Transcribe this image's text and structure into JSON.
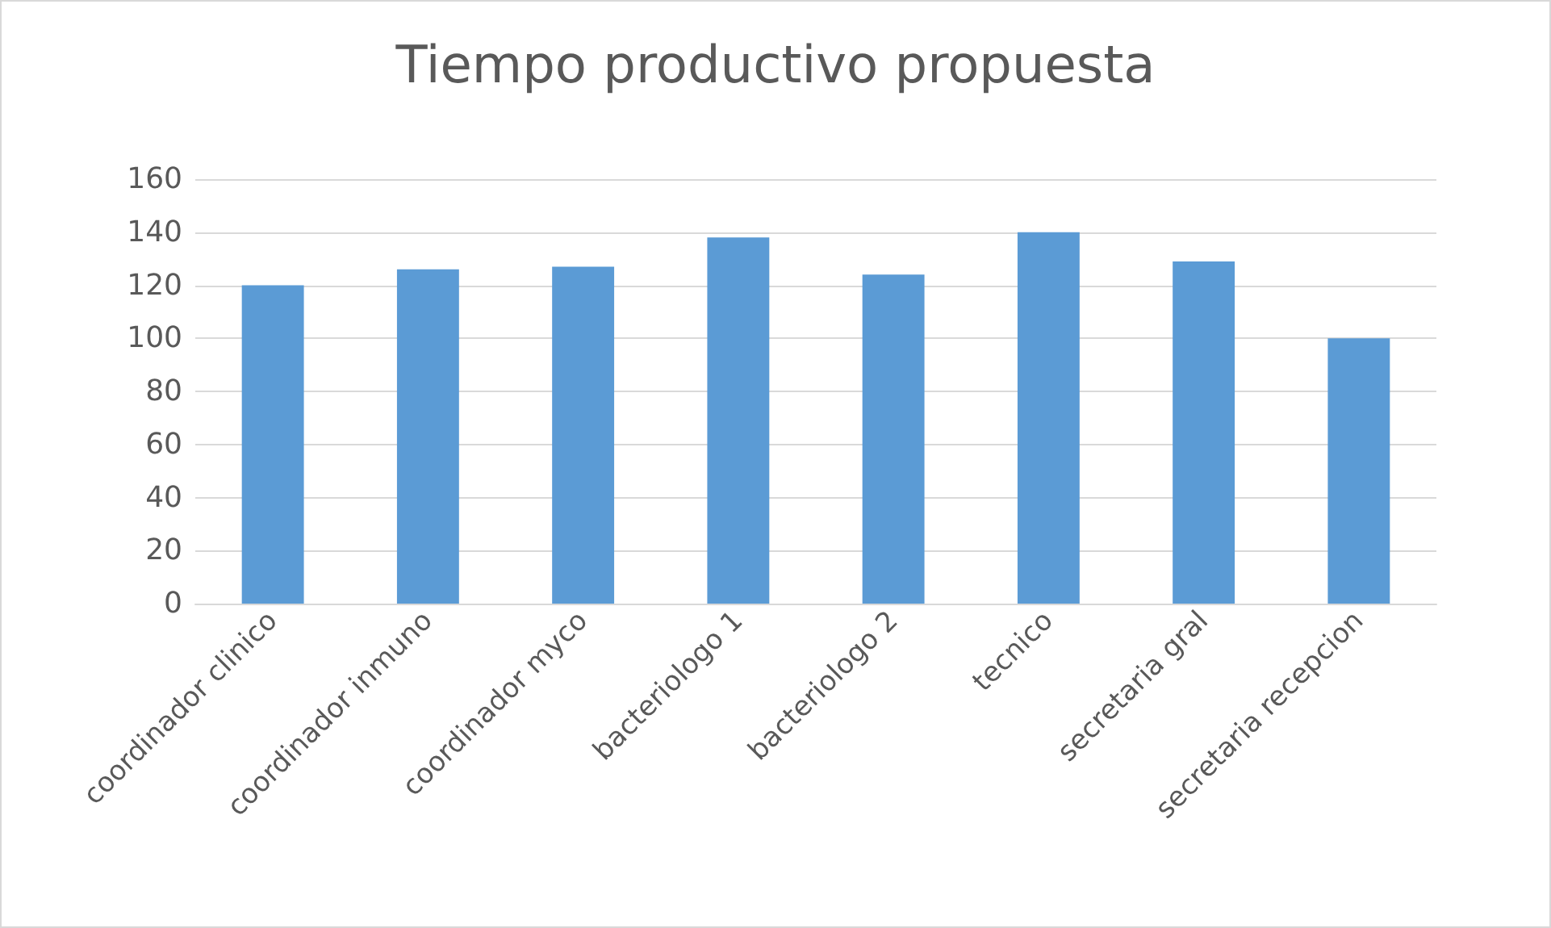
{
  "chart_data": {
    "type": "bar",
    "title": "Tiempo productivo propuesta",
    "categories": [
      "coordinador clinico",
      "coordinador inmuno",
      "coordinador myco",
      "bacteriologo 1",
      "bacteriologo 2",
      "tecnico",
      "secretaria gral",
      "secretaria recepcion"
    ],
    "values": [
      120,
      126,
      127,
      138,
      124,
      140,
      129,
      100
    ],
    "color": "#5b9bd5",
    "ylim": [
      0,
      160
    ],
    "yticks": [
      0,
      20,
      40,
      60,
      80,
      100,
      120,
      140,
      160
    ],
    "grid": "y"
  }
}
